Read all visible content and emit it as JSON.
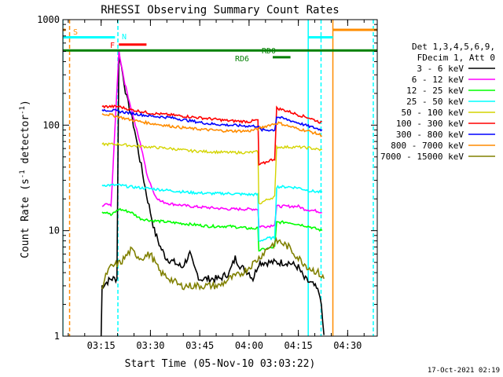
{
  "chart_data": {
    "type": "line",
    "title": "RHESSI Observing Summary Count Rates",
    "xlabel": "Start Time (05-Nov-10 03:03:22)",
    "ylabel_prefix": "Count Rate (s",
    "ylabel_exp": "-1",
    "ylabel_suffix": " detector",
    "ylabel_end": ")",
    "y_scale": "log",
    "ylim": [
      1,
      1000
    ],
    "xlim": [
      3.056,
      4.65
    ],
    "y_ticks": [
      {
        "v": 1,
        "label": "1"
      },
      {
        "v": 10,
        "label": "10"
      },
      {
        "v": 100,
        "label": "100"
      },
      {
        "v": 1000,
        "label": "1000"
      }
    ],
    "x_ticks": [
      {
        "v": 3.25,
        "label": "03:15"
      },
      {
        "v": 3.5,
        "label": "03:30"
      },
      {
        "v": 3.75,
        "label": "03:45"
      },
      {
        "v": 4.0,
        "label": "04:00"
      },
      {
        "v": 4.25,
        "label": "04:15"
      },
      {
        "v": 4.5,
        "label": "04:30"
      }
    ],
    "legend": {
      "placement": "right",
      "header": [
        "Det 1,3,4,5,6,9,",
        "FDecim 1, Att 0"
      ],
      "entries": [
        {
          "name": "3 - 6 keV",
          "color": "#000000"
        },
        {
          "name": "6 - 12 keV",
          "color": "#ff00ff"
        },
        {
          "name": "12 - 25 keV",
          "color": "#00ff00"
        },
        {
          "name": "25 - 50 keV",
          "color": "#00ffff"
        },
        {
          "name": "50 - 100 keV",
          "color": "#d4d400"
        },
        {
          "name": "100 - 300 keV",
          "color": "#ff0000"
        },
        {
          "name": "300 - 800 keV",
          "color": "#0000ff"
        },
        {
          "name": "800 - 7000 keV",
          "color": "#ff8c00"
        },
        {
          "name": "7000 - 15000 keV",
          "color": "#808000"
        }
      ]
    },
    "series": [
      {
        "name": "3 - 6 keV",
        "color": "#000000",
        "points": [
          [
            3.25,
            1.0
          ],
          [
            3.255,
            3.0
          ],
          [
            3.3,
            3.5
          ],
          [
            3.33,
            3.5
          ],
          [
            3.34,
            500
          ],
          [
            3.36,
            300
          ],
          [
            3.38,
            180
          ],
          [
            3.4,
            130
          ],
          [
            3.42,
            90
          ],
          [
            3.44,
            55
          ],
          [
            3.46,
            35
          ],
          [
            3.48,
            22
          ],
          [
            3.5,
            15
          ],
          [
            3.52,
            10
          ],
          [
            3.55,
            7
          ],
          [
            3.58,
            5.5
          ],
          [
            3.62,
            5
          ],
          [
            3.66,
            4.5
          ],
          [
            3.7,
            6
          ],
          [
            3.72,
            4.5
          ],
          [
            3.75,
            3.5
          ],
          [
            3.8,
            3.5
          ],
          [
            3.85,
            3.5
          ],
          [
            3.9,
            4
          ],
          [
            3.93,
            5.5
          ],
          [
            3.96,
            4.5
          ],
          [
            4.0,
            4
          ],
          [
            4.02,
            3.5
          ],
          [
            4.05,
            5
          ],
          [
            4.08,
            5
          ],
          [
            4.1,
            5
          ],
          [
            4.12,
            5
          ],
          [
            4.15,
            5
          ],
          [
            4.2,
            5
          ],
          [
            4.25,
            4.5
          ],
          [
            4.28,
            3.5
          ],
          [
            4.33,
            3
          ],
          [
            4.36,
            2.5
          ],
          [
            4.38,
            1.0
          ]
        ]
      },
      {
        "name": "6 - 12 keV",
        "color": "#ff00ff",
        "points": [
          [
            3.255,
            17
          ],
          [
            3.28,
            18
          ],
          [
            3.3,
            17
          ],
          [
            3.34,
            500
          ],
          [
            3.37,
            250
          ],
          [
            3.4,
            150
          ],
          [
            3.43,
            90
          ],
          [
            3.46,
            55
          ],
          [
            3.48,
            35
          ],
          [
            3.5,
            28
          ],
          [
            3.52,
            22
          ],
          [
            3.55,
            19
          ],
          [
            3.6,
            18
          ],
          [
            3.7,
            17
          ],
          [
            3.8,
            16.5
          ],
          [
            3.9,
            16
          ],
          [
            4.0,
            16
          ],
          [
            4.045,
            16
          ],
          [
            4.05,
            11
          ],
          [
            4.1,
            11
          ],
          [
            4.13,
            11.5
          ],
          [
            4.14,
            17
          ],
          [
            4.2,
            17
          ],
          [
            4.25,
            17
          ],
          [
            4.28,
            16
          ],
          [
            4.33,
            15.5
          ],
          [
            4.37,
            15
          ]
        ]
      },
      {
        "name": "12 - 25 keV",
        "color": "#00ff00",
        "points": [
          [
            3.255,
            15
          ],
          [
            3.28,
            15
          ],
          [
            3.3,
            14
          ],
          [
            3.34,
            16
          ],
          [
            3.4,
            15
          ],
          [
            3.45,
            13
          ],
          [
            3.5,
            12.5
          ],
          [
            3.6,
            12
          ],
          [
            3.7,
            11.5
          ],
          [
            3.8,
            11
          ],
          [
            3.9,
            11
          ],
          [
            4.0,
            10.5
          ],
          [
            4.045,
            10.5
          ],
          [
            4.05,
            6.5
          ],
          [
            4.1,
            6.8
          ],
          [
            4.13,
            7
          ],
          [
            4.14,
            12
          ],
          [
            4.2,
            12
          ],
          [
            4.25,
            11.5
          ],
          [
            4.3,
            11
          ],
          [
            4.37,
            10
          ]
        ]
      },
      {
        "name": "25 - 50 keV",
        "color": "#00ffff",
        "points": [
          [
            3.255,
            27
          ],
          [
            3.3,
            27
          ],
          [
            3.34,
            27
          ],
          [
            3.4,
            26
          ],
          [
            3.5,
            25
          ],
          [
            3.6,
            24
          ],
          [
            3.7,
            23
          ],
          [
            3.8,
            22.5
          ],
          [
            3.9,
            22.5
          ],
          [
            4.0,
            22
          ],
          [
            4.045,
            22
          ],
          [
            4.05,
            8
          ],
          [
            4.1,
            8.5
          ],
          [
            4.13,
            8.5
          ],
          [
            4.14,
            26
          ],
          [
            4.2,
            26
          ],
          [
            4.25,
            25.5
          ],
          [
            4.3,
            24
          ],
          [
            4.37,
            23
          ]
        ]
      },
      {
        "name": "50 - 100 keV",
        "color": "#d4d400",
        "points": [
          [
            3.255,
            66
          ],
          [
            3.3,
            66
          ],
          [
            3.34,
            66
          ],
          [
            3.4,
            64
          ],
          [
            3.5,
            62
          ],
          [
            3.6,
            60
          ],
          [
            3.7,
            57
          ],
          [
            3.8,
            56
          ],
          [
            3.9,
            55
          ],
          [
            4.0,
            55
          ],
          [
            4.045,
            56
          ],
          [
            4.05,
            18
          ],
          [
            4.1,
            20
          ],
          [
            4.13,
            21
          ],
          [
            4.14,
            62
          ],
          [
            4.2,
            62
          ],
          [
            4.25,
            62
          ],
          [
            4.3,
            61
          ],
          [
            4.37,
            58
          ]
        ]
      },
      {
        "name": "100 - 300 keV",
        "color": "#ff0000",
        "points": [
          [
            3.255,
            150
          ],
          [
            3.3,
            150
          ],
          [
            3.34,
            150
          ],
          [
            3.4,
            140
          ],
          [
            3.45,
            135
          ],
          [
            3.5,
            130
          ],
          [
            3.6,
            125
          ],
          [
            3.7,
            120
          ],
          [
            3.8,
            115
          ],
          [
            3.9,
            110
          ],
          [
            4.0,
            108
          ],
          [
            4.045,
            112
          ],
          [
            4.05,
            42
          ],
          [
            4.08,
            44
          ],
          [
            4.1,
            46
          ],
          [
            4.13,
            48
          ],
          [
            4.14,
            145
          ],
          [
            4.2,
            135
          ],
          [
            4.25,
            125
          ],
          [
            4.3,
            118
          ],
          [
            4.37,
            105
          ]
        ]
      },
      {
        "name": "300 - 800 keV",
        "color": "#0000ff",
        "points": [
          [
            3.255,
            140
          ],
          [
            3.3,
            138
          ],
          [
            3.34,
            135
          ],
          [
            3.4,
            130
          ],
          [
            3.5,
            122
          ],
          [
            3.6,
            118
          ],
          [
            3.7,
            110
          ],
          [
            3.8,
            103
          ],
          [
            3.9,
            100
          ],
          [
            4.0,
            98
          ],
          [
            4.045,
            98
          ],
          [
            4.06,
            90
          ],
          [
            4.1,
            90
          ],
          [
            4.13,
            90
          ],
          [
            4.14,
            120
          ],
          [
            4.2,
            112
          ],
          [
            4.25,
            105
          ],
          [
            4.3,
            98
          ],
          [
            4.37,
            90
          ]
        ]
      },
      {
        "name": "800 - 7000 keV",
        "color": "#ff8c00",
        "points": [
          [
            3.255,
            128
          ],
          [
            3.3,
            125
          ],
          [
            3.34,
            120
          ],
          [
            3.4,
            112
          ],
          [
            3.5,
            104
          ],
          [
            3.6,
            98
          ],
          [
            3.7,
            93
          ],
          [
            3.8,
            90
          ],
          [
            3.9,
            88
          ],
          [
            4.0,
            88
          ],
          [
            4.045,
            92
          ],
          [
            4.1,
            100
          ],
          [
            4.15,
            105
          ],
          [
            4.2,
            98
          ],
          [
            4.25,
            92
          ],
          [
            4.3,
            88
          ],
          [
            4.37,
            80
          ]
        ]
      },
      {
        "name": "7000 - 15000 keV",
        "color": "#808000",
        "points": [
          [
            3.255,
            2.8
          ],
          [
            3.28,
            4
          ],
          [
            3.3,
            4.5
          ],
          [
            3.35,
            5
          ],
          [
            3.4,
            6.5
          ],
          [
            3.45,
            5.5
          ],
          [
            3.5,
            6
          ],
          [
            3.55,
            4
          ],
          [
            3.6,
            3.5
          ],
          [
            3.65,
            3
          ],
          [
            3.7,
            3
          ],
          [
            3.75,
            3
          ],
          [
            3.8,
            3
          ],
          [
            3.85,
            3
          ],
          [
            3.9,
            3.5
          ],
          [
            3.95,
            3.8
          ],
          [
            4.0,
            4.5
          ],
          [
            4.05,
            5.5
          ],
          [
            4.1,
            7
          ],
          [
            4.15,
            8
          ],
          [
            4.2,
            7
          ],
          [
            4.25,
            5.5
          ],
          [
            4.3,
            4.5
          ],
          [
            4.35,
            4
          ],
          [
            4.38,
            3.5
          ]
        ]
      }
    ],
    "annotations": [
      {
        "label": "S",
        "color": "#ff8c00",
        "x": [
          3.056,
          3.07
        ],
        "y": 800
      },
      {
        "label": "N",
        "color": "#00ffff",
        "x": [
          3.056,
          3.32
        ],
        "y": 680
      },
      {
        "label": "F",
        "color": "#ff0000",
        "x": [
          3.34,
          3.48
        ],
        "y": 580
      },
      {
        "label": "RD0",
        "color": "#008000",
        "x": [
          3.056,
          4.65
        ],
        "y": 510
      },
      {
        "label": "RD6",
        "color": "#008000",
        "x": [
          4.12,
          4.21
        ],
        "y": 440
      }
    ],
    "vertical_markers": [
      {
        "x": 3.056,
        "color": "#00ffff",
        "style": "solid"
      },
      {
        "x": 3.09,
        "color": "#ff8c00",
        "style": "dashed"
      },
      {
        "x": 3.335,
        "color": "#00ffff",
        "style": "dashed"
      },
      {
        "x": 4.3,
        "color": "#00ffff",
        "style": "solid"
      },
      {
        "x": 4.365,
        "color": "#00ffff",
        "style": "dashed"
      },
      {
        "x": 4.425,
        "color": "#ff8c00",
        "style": "solid"
      },
      {
        "x": 4.63,
        "color": "#00ffff",
        "style": "dashed"
      }
    ],
    "cyan_top_segments": [
      [
        3.056,
        3.32
      ],
      [
        4.3,
        4.425
      ]
    ],
    "orange_top_segment": [
      4.425,
      4.65
    ],
    "footer_stamp": "17-Oct-2021 02:19"
  }
}
